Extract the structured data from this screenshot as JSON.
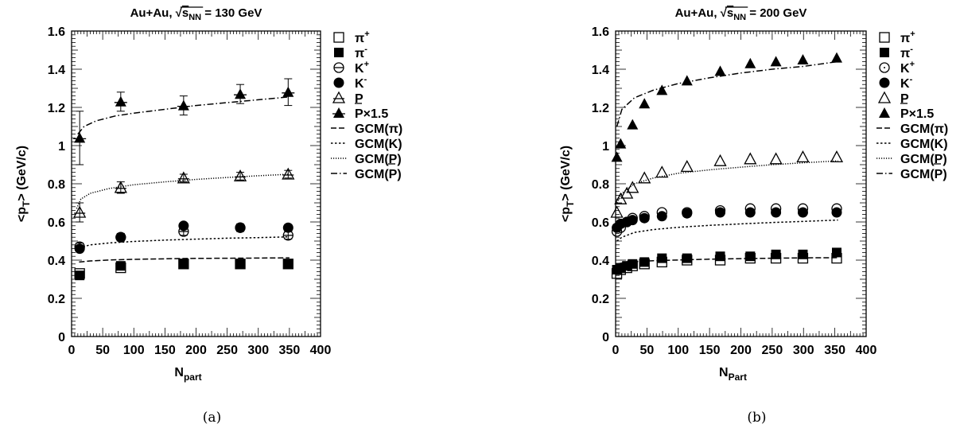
{
  "chart_data": [
    {
      "type": "scatter",
      "title_prefix": "Au+Au, ",
      "title_sqrt": "s",
      "title_sub": "NN",
      "title_suffix": " = 130 GeV",
      "xlabel": "N",
      "xlabel_sub": "part",
      "ylabel": "<p",
      "ylabel_sub": "T",
      "ylabel_suffix": "> (GeV/c)",
      "xlim": [
        0,
        400
      ],
      "ylim": [
        0,
        1.6
      ],
      "xticks": [
        "0",
        "50",
        "100",
        "150",
        "200",
        "250",
        "300",
        "350",
        "400"
      ],
      "yticks": [
        "0",
        "0.2",
        "0.4",
        "0.6",
        "0.8",
        "1",
        "1.2",
        "1.4",
        "1.6"
      ],
      "caption": "(a)",
      "series": [
        {
          "name": "π",
          "sup": "+",
          "marker": "open-square",
          "points": [
            [
              13,
              0.33
            ],
            [
              79,
              0.36
            ],
            [
              180,
              0.38
            ],
            [
              271,
              0.38
            ],
            [
              348,
              0.38
            ]
          ]
        },
        {
          "name": "π",
          "sup": "-",
          "marker": "filled-square",
          "points": [
            [
              13,
              0.32
            ],
            [
              79,
              0.37
            ],
            [
              180,
              0.38
            ],
            [
              271,
              0.38
            ],
            [
              348,
              0.38
            ]
          ]
        },
        {
          "name": "K",
          "sup": "+",
          "marker": "open-circle-bar",
          "points": [
            [
              13,
              0.47
            ],
            [
              79,
              0.52
            ],
            [
              180,
              0.55
            ],
            [
              271,
              0.57
            ],
            [
              348,
              0.53
            ]
          ],
          "errors": [
            0.02,
            0.02,
            0.02,
            0.02,
            0.02
          ]
        },
        {
          "name": "K",
          "sup": "-",
          "marker": "filled-circle",
          "points": [
            [
              13,
              0.46
            ],
            [
              79,
              0.52
            ],
            [
              180,
              0.58
            ],
            [
              271,
              0.57
            ],
            [
              348,
              0.57
            ]
          ]
        },
        {
          "name": "P",
          "sup": "",
          "marker": "open-triangle-bar",
          "points": [
            [
              13,
              0.65
            ],
            [
              79,
              0.78
            ],
            [
              180,
              0.83
            ],
            [
              271,
              0.84
            ],
            [
              348,
              0.85
            ]
          ],
          "errors": [
            0.05,
            0.03,
            0.02,
            0.02,
            0.02
          ]
        },
        {
          "name": "P×1.5",
          "sup": "",
          "bar": true,
          "marker": "filled-triangle-bar",
          "points": [
            [
              13,
              1.04
            ],
            [
              79,
              1.23
            ],
            [
              180,
              1.21
            ],
            [
              271,
              1.27
            ],
            [
              348,
              1.28
            ]
          ],
          "errors": [
            0.14,
            0.05,
            0.05,
            0.05,
            0.07
          ]
        },
        {
          "name": "GCM(π)",
          "sup": "",
          "marker": "dashed-line",
          "curve": [
            [
              12,
              0.39
            ],
            [
              30,
              0.396
            ],
            [
              60,
              0.401
            ],
            [
              100,
              0.404
            ],
            [
              150,
              0.407
            ],
            [
              200,
              0.409
            ],
            [
              250,
              0.41
            ],
            [
              300,
              0.411
            ],
            [
              350,
              0.412
            ]
          ]
        },
        {
          "name": "GCM(K)",
          "sup": "",
          "marker": "dotted-line",
          "curve": [
            [
              12,
              0.465
            ],
            [
              30,
              0.48
            ],
            [
              60,
              0.49
            ],
            [
              100,
              0.498
            ],
            [
              150,
              0.505
            ],
            [
              200,
              0.51
            ],
            [
              250,
              0.515
            ],
            [
              300,
              0.518
            ],
            [
              350,
              0.522
            ]
          ]
        },
        {
          "name": "GCM(P)",
          "sup": "",
          "marker": "fine-dotted-line",
          "curve": [
            [
              8,
              0.67
            ],
            [
              15,
              0.72
            ],
            [
              30,
              0.75
            ],
            [
              60,
              0.775
            ],
            [
              100,
              0.795
            ],
            [
              150,
              0.81
            ],
            [
              200,
              0.823
            ],
            [
              250,
              0.833
            ],
            [
              300,
              0.842
            ],
            [
              350,
              0.85
            ]
          ]
        },
        {
          "name": "GCM(P)",
          "sup": "",
          "bar": true,
          "marker": "dash-dot-line",
          "curve": [
            [
              10,
              1.06
            ],
            [
              20,
              1.1
            ],
            [
              40,
              1.13
            ],
            [
              70,
              1.155
            ],
            [
              100,
              1.17
            ],
            [
              150,
              1.19
            ],
            [
              200,
              1.21
            ],
            [
              250,
              1.225
            ],
            [
              300,
              1.24
            ],
            [
              350,
              1.255
            ]
          ]
        }
      ]
    },
    {
      "type": "scatter",
      "title_prefix": "Au+Au, ",
      "title_sqrt": "s",
      "title_sub": "NN",
      "title_suffix": " = 200 GeV",
      "xlabel": "N",
      "xlabel_sub": "Part",
      "ylabel": "<p",
      "ylabel_sub": "T",
      "ylabel_suffix": "> (GeV/c)",
      "xlim": [
        0,
        400
      ],
      "ylim": [
        0,
        1.6
      ],
      "xticks": [
        "0",
        "50",
        "100",
        "150",
        "200",
        "250",
        "300",
        "350",
        "400"
      ],
      "yticks": [
        "0",
        "0.2",
        "0.4",
        "0.6",
        "0.8",
        "1",
        "1.2",
        "1.4",
        "1.6"
      ],
      "caption": "(b)",
      "series": [
        {
          "name": "π",
          "sup": "+",
          "marker": "open-square",
          "points": [
            [
              2,
              0.33
            ],
            [
              8,
              0.35
            ],
            [
              18,
              0.36
            ],
            [
              27,
              0.37
            ],
            [
              46,
              0.38
            ],
            [
              74,
              0.39
            ],
            [
              114,
              0.4
            ],
            [
              167,
              0.4
            ],
            [
              215,
              0.41
            ],
            [
              256,
              0.41
            ],
            [
              299,
              0.41
            ],
            [
              353,
              0.41
            ]
          ]
        },
        {
          "name": "π",
          "sup": "-",
          "marker": "filled-square",
          "points": [
            [
              2,
              0.35
            ],
            [
              8,
              0.36
            ],
            [
              18,
              0.37
            ],
            [
              27,
              0.38
            ],
            [
              46,
              0.39
            ],
            [
              74,
              0.41
            ],
            [
              114,
              0.41
            ],
            [
              167,
              0.42
            ],
            [
              215,
              0.42
            ],
            [
              256,
              0.43
            ],
            [
              299,
              0.43
            ],
            [
              353,
              0.44
            ]
          ]
        },
        {
          "name": "K",
          "sup": "+",
          "marker": "open-circle-dot",
          "points": [
            [
              2,
              0.55
            ],
            [
              8,
              0.57
            ],
            [
              18,
              0.6
            ],
            [
              27,
              0.62
            ],
            [
              46,
              0.63
            ],
            [
              74,
              0.65
            ],
            [
              114,
              0.65
            ],
            [
              167,
              0.66
            ],
            [
              215,
              0.67
            ],
            [
              256,
              0.67
            ],
            [
              299,
              0.67
            ],
            [
              353,
              0.67
            ]
          ]
        },
        {
          "name": "K",
          "sup": "-",
          "marker": "filled-circle",
          "points": [
            [
              2,
              0.57
            ],
            [
              8,
              0.59
            ],
            [
              18,
              0.6
            ],
            [
              27,
              0.61
            ],
            [
              46,
              0.62
            ],
            [
              74,
              0.63
            ],
            [
              114,
              0.645
            ],
            [
              167,
              0.65
            ],
            [
              215,
              0.65
            ],
            [
              256,
              0.65
            ],
            [
              299,
              0.65
            ],
            [
              353,
              0.65
            ]
          ]
        },
        {
          "name": "P",
          "sup": "",
          "marker": "open-triangle",
          "points": [
            [
              2,
              0.65
            ],
            [
              8,
              0.72
            ],
            [
              18,
              0.75
            ],
            [
              27,
              0.78
            ],
            [
              46,
              0.83
            ],
            [
              74,
              0.86
            ],
            [
              114,
              0.89
            ],
            [
              167,
              0.92
            ],
            [
              215,
              0.93
            ],
            [
              256,
              0.93
            ],
            [
              299,
              0.94
            ],
            [
              353,
              0.94
            ]
          ]
        },
        {
          "name": "P×1.5",
          "sup": "",
          "bar": true,
          "marker": "filled-triangle",
          "points": [
            [
              2,
              0.94
            ],
            [
              8,
              1.01
            ],
            [
              27,
              1.11
            ],
            [
              46,
              1.22
            ],
            [
              74,
              1.29
            ],
            [
              114,
              1.34
            ],
            [
              167,
              1.39
            ],
            [
              215,
              1.43
            ],
            [
              256,
              1.44
            ],
            [
              299,
              1.45
            ],
            [
              353,
              1.46
            ]
          ]
        },
        {
          "name": "GCM(π)",
          "sup": "",
          "marker": "dashed-line",
          "curve": [
            [
              2,
              0.38
            ],
            [
              10,
              0.385
            ],
            [
              30,
              0.392
            ],
            [
              60,
              0.397
            ],
            [
              100,
              0.401
            ],
            [
              150,
              0.405
            ],
            [
              200,
              0.408
            ],
            [
              250,
              0.41
            ],
            [
              300,
              0.412
            ],
            [
              355,
              0.413
            ]
          ]
        },
        {
          "name": "GCM(K)",
          "sup": "",
          "marker": "dotted-line",
          "curve": [
            [
              2,
              0.5
            ],
            [
              10,
              0.52
            ],
            [
              30,
              0.545
            ],
            [
              60,
              0.56
            ],
            [
              100,
              0.572
            ],
            [
              150,
              0.582
            ],
            [
              200,
              0.59
            ],
            [
              250,
              0.597
            ],
            [
              300,
              0.603
            ],
            [
              355,
              0.61
            ]
          ]
        },
        {
          "name": "GCM(P)",
          "sup": "",
          "marker": "fine-dotted-line",
          "curve": [
            [
              2,
              0.7
            ],
            [
              10,
              0.75
            ],
            [
              30,
              0.8
            ],
            [
              60,
              0.83
            ],
            [
              100,
              0.855
            ],
            [
              150,
              0.873
            ],
            [
              200,
              0.887
            ],
            [
              250,
              0.9
            ],
            [
              300,
              0.91
            ],
            [
              355,
              0.92
            ]
          ]
        },
        {
          "name": "GCM(P)",
          "sup": "",
          "bar": true,
          "marker": "dash-dot-line",
          "curve": [
            [
              2,
              1.1
            ],
            [
              10,
              1.19
            ],
            [
              30,
              1.25
            ],
            [
              60,
              1.29
            ],
            [
              100,
              1.325
            ],
            [
              150,
              1.355
            ],
            [
              200,
              1.38
            ],
            [
              250,
              1.4
            ],
            [
              300,
              1.415
            ],
            [
              355,
              1.44
            ]
          ]
        }
      ]
    }
  ]
}
